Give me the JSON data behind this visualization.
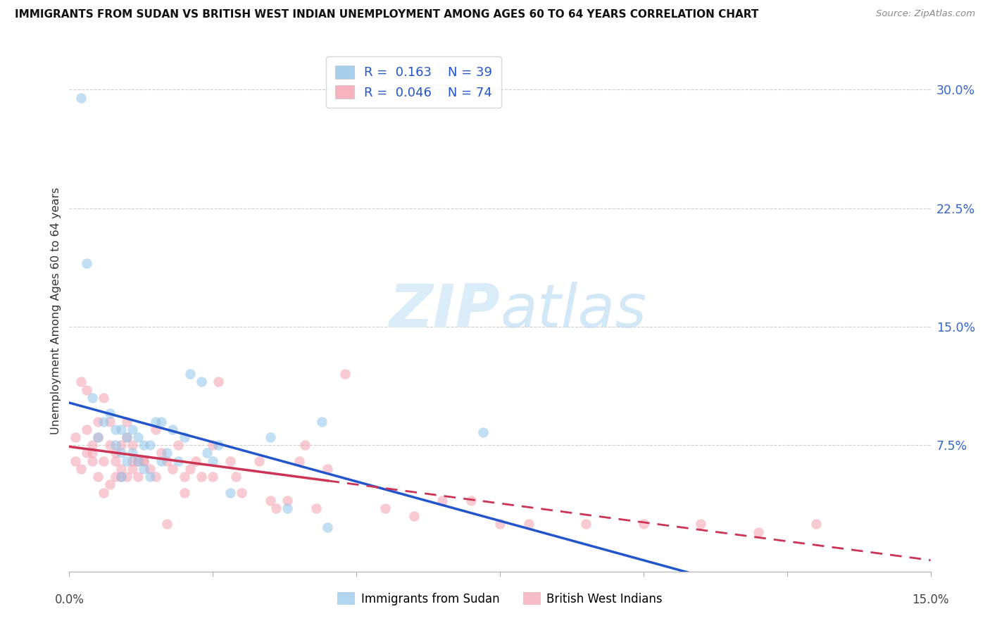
{
  "title": "IMMIGRANTS FROM SUDAN VS BRITISH WEST INDIAN UNEMPLOYMENT AMONG AGES 60 TO 64 YEARS CORRELATION CHART",
  "source": "Source: ZipAtlas.com",
  "ylabel": "Unemployment Among Ages 60 to 64 years",
  "yticks_labels": [
    "30.0%",
    "22.5%",
    "15.0%",
    "7.5%"
  ],
  "ytick_vals": [
    0.3,
    0.225,
    0.15,
    0.075
  ],
  "xlim": [
    0.0,
    0.15
  ],
  "ylim": [
    -0.005,
    0.325
  ],
  "color_blue": "#90c4e8",
  "color_pink": "#f4a0b0",
  "color_blue_line": "#2255cc",
  "color_pink_line": "#cc3355",
  "sudan_x": [
    0.002,
    0.003,
    0.004,
    0.005,
    0.006,
    0.007,
    0.008,
    0.008,
    0.009,
    0.009,
    0.009,
    0.01,
    0.01,
    0.011,
    0.011,
    0.012,
    0.012,
    0.013,
    0.013,
    0.014,
    0.014,
    0.015,
    0.016,
    0.016,
    0.017,
    0.018,
    0.019,
    0.02,
    0.021,
    0.023,
    0.024,
    0.025,
    0.026,
    0.028,
    0.035,
    0.044,
    0.072,
    0.038,
    0.045
  ],
  "sudan_y": [
    0.295,
    0.19,
    0.105,
    0.08,
    0.09,
    0.095,
    0.085,
    0.075,
    0.085,
    0.07,
    0.055,
    0.08,
    0.065,
    0.085,
    0.07,
    0.08,
    0.065,
    0.075,
    0.06,
    0.075,
    0.055,
    0.09,
    0.09,
    0.065,
    0.07,
    0.085,
    0.065,
    0.08,
    0.12,
    0.115,
    0.07,
    0.065,
    0.075,
    0.045,
    0.08,
    0.09,
    0.083,
    0.035,
    0.023
  ],
  "bwi_x": [
    0.001,
    0.002,
    0.003,
    0.003,
    0.004,
    0.004,
    0.005,
    0.005,
    0.006,
    0.006,
    0.007,
    0.007,
    0.008,
    0.008,
    0.009,
    0.009,
    0.01,
    0.01,
    0.011,
    0.011,
    0.012,
    0.012,
    0.013,
    0.014,
    0.015,
    0.016,
    0.017,
    0.018,
    0.019,
    0.02,
    0.021,
    0.022,
    0.023,
    0.025,
    0.026,
    0.028,
    0.029,
    0.03,
    0.033,
    0.035,
    0.036,
    0.038,
    0.04,
    0.041,
    0.043,
    0.048,
    0.055,
    0.06,
    0.065,
    0.07,
    0.075,
    0.08,
    0.09,
    0.1,
    0.11,
    0.12,
    0.13,
    0.001,
    0.002,
    0.003,
    0.004,
    0.005,
    0.006,
    0.007,
    0.008,
    0.009,
    0.01,
    0.011,
    0.013,
    0.015,
    0.017,
    0.02,
    0.025,
    0.045
  ],
  "bwi_y": [
    0.08,
    0.115,
    0.085,
    0.07,
    0.075,
    0.065,
    0.09,
    0.08,
    0.105,
    0.065,
    0.09,
    0.075,
    0.065,
    0.055,
    0.075,
    0.055,
    0.09,
    0.08,
    0.075,
    0.06,
    0.065,
    0.055,
    0.065,
    0.06,
    0.085,
    0.07,
    0.065,
    0.06,
    0.075,
    0.055,
    0.06,
    0.065,
    0.055,
    0.075,
    0.115,
    0.065,
    0.055,
    0.045,
    0.065,
    0.04,
    0.035,
    0.04,
    0.065,
    0.075,
    0.035,
    0.12,
    0.035,
    0.03,
    0.04,
    0.04,
    0.025,
    0.025,
    0.025,
    0.025,
    0.025,
    0.02,
    0.025,
    0.065,
    0.06,
    0.11,
    0.07,
    0.055,
    0.045,
    0.05,
    0.07,
    0.06,
    0.055,
    0.065,
    0.065,
    0.055,
    0.025,
    0.045,
    0.055,
    0.06
  ]
}
